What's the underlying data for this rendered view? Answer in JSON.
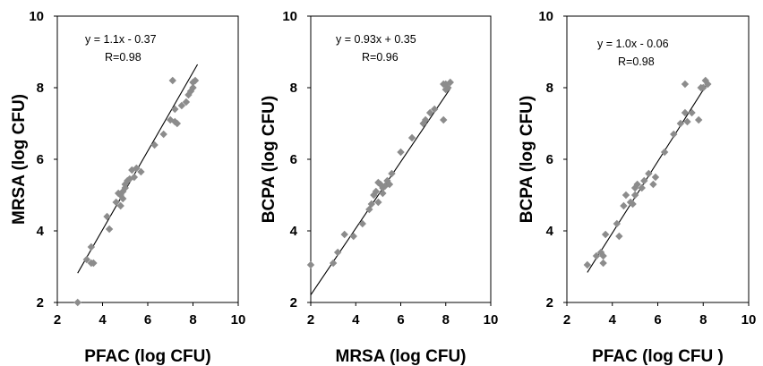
{
  "chart_data": [
    {
      "type": "scatter",
      "xlabel": "PFAC (log CFU)",
      "ylabel": "MRSA (log CFU)",
      "xlim": [
        2,
        10
      ],
      "ylim": [
        2,
        10
      ],
      "xticks": [
        "2",
        "4",
        "6",
        "8",
        "10"
      ],
      "yticks": [
        "2",
        "4",
        "6",
        "8",
        "10"
      ],
      "annotation_equation": "y = 1.1x - 0.37",
      "annotation_r": "R=0.98",
      "trendline": {
        "slope": 1.1,
        "intercept": -0.37,
        "x_range": [
          2.9,
          8.2
        ]
      },
      "points": [
        [
          2.9,
          2.0
        ],
        [
          3.3,
          3.2
        ],
        [
          3.5,
          3.1
        ],
        [
          3.6,
          3.1
        ],
        [
          3.5,
          3.55
        ],
        [
          4.2,
          4.4
        ],
        [
          4.3,
          4.05
        ],
        [
          4.6,
          4.8
        ],
        [
          4.8,
          4.7
        ],
        [
          4.8,
          5.0
        ],
        [
          4.7,
          5.05
        ],
        [
          4.9,
          4.9
        ],
        [
          5.0,
          5.2
        ],
        [
          4.9,
          5.1
        ],
        [
          5.1,
          5.4
        ],
        [
          5.2,
          5.45
        ],
        [
          5.0,
          5.3
        ],
        [
          5.4,
          5.5
        ],
        [
          5.3,
          5.7
        ],
        [
          5.5,
          5.75
        ],
        [
          5.7,
          5.65
        ],
        [
          6.3,
          6.4
        ],
        [
          6.7,
          6.7
        ],
        [
          7.0,
          7.1
        ],
        [
          7.2,
          7.4
        ],
        [
          7.5,
          7.5
        ],
        [
          7.3,
          7.0
        ],
        [
          7.7,
          7.6
        ],
        [
          7.8,
          7.8
        ],
        [
          8.0,
          8.0
        ],
        [
          8.1,
          8.2
        ],
        [
          7.1,
          8.2
        ],
        [
          7.9,
          7.9
        ],
        [
          8.0,
          8.15
        ],
        [
          7.2,
          7.05
        ]
      ]
    },
    {
      "type": "scatter",
      "xlabel": "MRSA (log CFU)",
      "ylabel": "BCPA (log CFU)",
      "xlim": [
        2,
        10
      ],
      "ylim": [
        2,
        10
      ],
      "xticks": [
        "2",
        "4",
        "6",
        "8",
        "10"
      ],
      "yticks": [
        "2",
        "4",
        "6",
        "8",
        "10"
      ],
      "annotation_equation": "y = 0.93x + 0.35",
      "annotation_r": "R=0.96",
      "trendline": {
        "slope": 0.93,
        "intercept": 0.35,
        "x_range": [
          2.0,
          8.2
        ]
      },
      "points": [
        [
          2.0,
          3.05
        ],
        [
          3.0,
          3.1
        ],
        [
          3.2,
          3.4
        ],
        [
          3.5,
          3.9
        ],
        [
          3.9,
          3.85
        ],
        [
          4.3,
          4.2
        ],
        [
          4.6,
          4.6
        ],
        [
          4.7,
          4.75
        ],
        [
          4.8,
          5.0
        ],
        [
          4.9,
          5.1
        ],
        [
          5.0,
          4.8
        ],
        [
          5.1,
          5.3
        ],
        [
          5.2,
          5.2
        ],
        [
          5.3,
          5.25
        ],
        [
          5.4,
          5.4
        ],
        [
          5.5,
          5.3
        ],
        [
          5.6,
          5.6
        ],
        [
          5.0,
          5.35
        ],
        [
          5.2,
          5.05
        ],
        [
          6.0,
          6.2
        ],
        [
          6.5,
          6.6
        ],
        [
          7.0,
          7.0
        ],
        [
          7.1,
          7.1
        ],
        [
          7.3,
          7.3
        ],
        [
          7.5,
          7.4
        ],
        [
          7.9,
          7.1
        ],
        [
          8.0,
          8.1
        ],
        [
          8.1,
          8.0
        ],
        [
          7.9,
          8.1
        ],
        [
          8.2,
          8.15
        ],
        [
          8.0,
          7.95
        ]
      ]
    },
    {
      "type": "scatter",
      "xlabel": "PFAC (log CFU )",
      "ylabel": "BCPA (log CFU)",
      "xlim": [
        2,
        10
      ],
      "ylim": [
        2,
        10
      ],
      "xticks": [
        "2",
        "4",
        "6",
        "8",
        "10"
      ],
      "yticks": [
        "2",
        "4",
        "6",
        "8",
        "10"
      ],
      "annotation_equation": "y = 1.0x - 0.06",
      "annotation_r": "R=0.98",
      "trendline": {
        "slope": 1.0,
        "intercept": -0.06,
        "x_range": [
          2.9,
          8.2
        ]
      },
      "points": [
        [
          2.9,
          3.05
        ],
        [
          3.3,
          3.3
        ],
        [
          3.5,
          3.4
        ],
        [
          3.6,
          3.1
        ],
        [
          3.6,
          3.3
        ],
        [
          3.7,
          3.9
        ],
        [
          4.2,
          4.2
        ],
        [
          4.3,
          3.85
        ],
        [
          4.5,
          4.7
        ],
        [
          4.6,
          5.0
        ],
        [
          4.8,
          4.8
        ],
        [
          4.9,
          4.75
        ],
        [
          5.0,
          5.2
        ],
        [
          5.1,
          5.3
        ],
        [
          5.0,
          5.0
        ],
        [
          5.3,
          5.2
        ],
        [
          5.4,
          5.4
        ],
        [
          5.6,
          5.6
        ],
        [
          5.8,
          5.3
        ],
        [
          5.9,
          5.5
        ],
        [
          6.3,
          6.2
        ],
        [
          6.7,
          6.7
        ],
        [
          7.0,
          7.0
        ],
        [
          7.2,
          7.3
        ],
        [
          7.2,
          8.1
        ],
        [
          7.5,
          7.3
        ],
        [
          7.8,
          7.1
        ],
        [
          8.0,
          8.0
        ],
        [
          8.1,
          8.2
        ],
        [
          7.9,
          8.0
        ],
        [
          8.2,
          8.1
        ],
        [
          7.3,
          7.05
        ]
      ]
    }
  ]
}
